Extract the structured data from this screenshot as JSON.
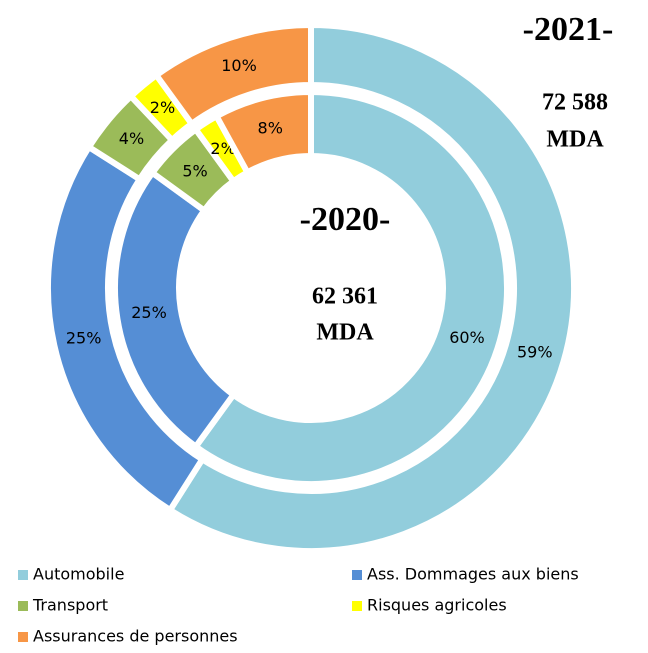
{
  "chart_data": {
    "type": "donut",
    "categories": [
      "Automobile",
      "Ass. Dommages aux biens",
      "Transport",
      "Risques agricoles",
      "Assurances de personnes"
    ],
    "colors": [
      "#92CDDC",
      "#558ED5",
      "#9BBB59",
      "#FFFF00",
      "#F79646"
    ],
    "series": [
      {
        "name": "-2021-",
        "total": "72  588",
        "unit": "MDA",
        "values": [
          59,
          25,
          4,
          2,
          10
        ],
        "value_labels": [
          "59%",
          "25%",
          "4%",
          "2%",
          "10%"
        ]
      },
      {
        "name": "-2020-",
        "total": "62  361",
        "unit": "MDA",
        "values": [
          60,
          25,
          5,
          2,
          8
        ],
        "value_labels": [
          "60%",
          "25%",
          "5%",
          "2%",
          "8%"
        ]
      }
    ]
  }
}
